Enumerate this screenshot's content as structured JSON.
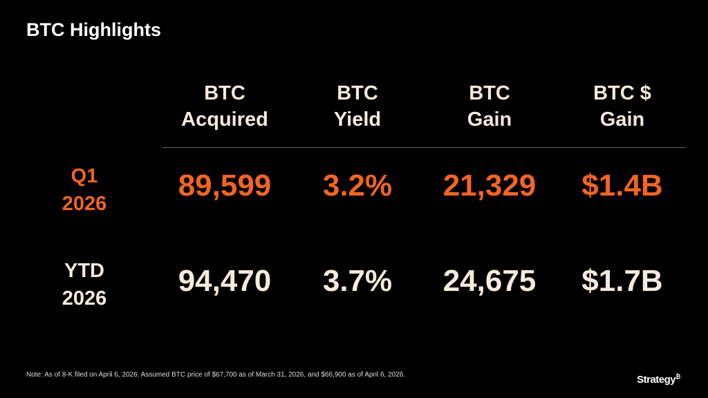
{
  "title": "BTC Highlights",
  "columns": [
    {
      "line1": "BTC",
      "line2": "Acquired"
    },
    {
      "line1": "BTC",
      "line2": "Yield"
    },
    {
      "line1": "BTC",
      "line2": "Gain"
    },
    {
      "line1": "BTC $",
      "line2": "Gain"
    }
  ],
  "rows": [
    {
      "label1": "Q1",
      "label2": "2026",
      "values": [
        "89,599",
        "3.2%",
        "21,329",
        "$1.4B"
      ]
    },
    {
      "label1": "YTD",
      "label2": "2026",
      "values": [
        "94,470",
        "3.7%",
        "24,675",
        "$1.7B"
      ]
    }
  ],
  "note": "Note: As of 8-K filed on April 6, 2026. Assumed BTC price of $67,700 as of March 31, 2026, and $66,900 as of April 6, 2026.",
  "logo": {
    "text": "Strategy",
    "mark": "₿"
  },
  "colors": {
    "accent": "#F26522",
    "text": "#F5EBDC",
    "background": "#000000"
  }
}
